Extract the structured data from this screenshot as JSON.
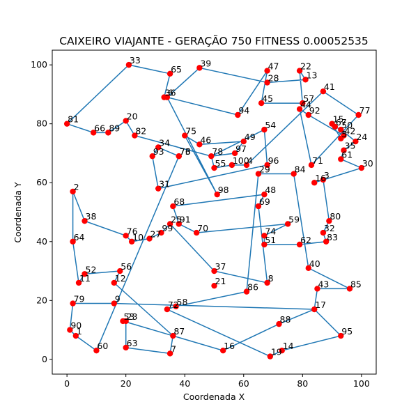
{
  "chart_data": {
    "type": "line",
    "title": "CAIXEIRO VIAJANTE - GERAÇÃO 750 FITNESS 0.00052535",
    "xlabel": "Coordenada X",
    "ylabel": "Coordenada Y",
    "xlim": [
      -5,
      105
    ],
    "ylim": [
      -5,
      105
    ],
    "xticks": [
      0,
      20,
      40,
      60,
      80,
      100
    ],
    "yticks": [
      0,
      20,
      40,
      60,
      80,
      100
    ],
    "grid": false,
    "colors": {
      "route": "#1f77b4",
      "city": "#ff0000"
    },
    "cities": [
      {
        "id": "81",
        "x": 0,
        "y": 80
      },
      {
        "id": "66",
        "x": 9,
        "y": 77
      },
      {
        "id": "89",
        "x": 14,
        "y": 77
      },
      {
        "id": "20",
        "x": 20,
        "y": 81
      },
      {
        "id": "82",
        "x": 23,
        "y": 76
      },
      {
        "id": "34",
        "x": 31,
        "y": 72
      },
      {
        "id": "93",
        "x": 29,
        "y": 69
      },
      {
        "id": "76",
        "x": 38,
        "y": 69
      },
      {
        "id": "73",
        "x": 38,
        "y": 69
      },
      {
        "id": "75",
        "x": 40,
        "y": 76
      },
      {
        "id": "46",
        "x": 45,
        "y": 73
      },
      {
        "id": "49",
        "x": 60,
        "y": 74
      },
      {
        "id": "97",
        "x": 57,
        "y": 70
      },
      {
        "id": "78",
        "x": 49,
        "y": 69
      },
      {
        "id": "55",
        "x": 50,
        "y": 65
      },
      {
        "id": "100",
        "x": 56,
        "y": 66
      },
      {
        "id": "4",
        "x": 61,
        "y": 66
      },
      {
        "id": "96",
        "x": 68,
        "y": 66
      },
      {
        "id": "29",
        "x": 65,
        "y": 63
      },
      {
        "id": "84",
        "x": 77,
        "y": 63
      },
      {
        "id": "71",
        "x": 83,
        "y": 66
      },
      {
        "id": "16",
        "x": 84,
        "y": 60
      },
      {
        "id": "3",
        "x": 87,
        "y": 61
      },
      {
        "id": "80",
        "x": 89,
        "y": 47
      },
      {
        "id": "32",
        "x": 87,
        "y": 43
      },
      {
        "id": "83",
        "x": 88,
        "y": 40
      },
      {
        "id": "62",
        "x": 79,
        "y": 39
      },
      {
        "id": "40",
        "x": 82,
        "y": 31
      },
      {
        "id": "43",
        "x": 85,
        "y": 24
      },
      {
        "id": "85",
        "x": 96,
        "y": 24
      },
      {
        "id": "17",
        "x": 84,
        "y": 17
      },
      {
        "id": "95",
        "x": 93,
        "y": 8
      },
      {
        "id": "14",
        "x": 73,
        "y": 3
      },
      {
        "id": "19",
        "x": 69,
        "y": 1
      },
      {
        "id": "16b",
        "x": 53,
        "y": 3
      },
      {
        "id": "7",
        "x": 35,
        "y": 2
      },
      {
        "id": "87",
        "x": 36,
        "y": 8
      },
      {
        "id": "72",
        "x": 34,
        "y": 17
      },
      {
        "id": "58",
        "x": 37,
        "y": 18
      },
      {
        "id": "86",
        "x": 61,
        "y": 23
      },
      {
        "id": "8",
        "x": 68,
        "y": 26
      },
      {
        "id": "88",
        "x": 72,
        "y": 12
      },
      {
        "id": "74",
        "x": 67,
        "y": 42
      },
      {
        "id": "51",
        "x": 67,
        "y": 39
      },
      {
        "id": "59",
        "x": 75,
        "y": 46
      },
      {
        "id": "69",
        "x": 65,
        "y": 52
      },
      {
        "id": "48",
        "x": 67,
        "y": 56
      },
      {
        "id": "98",
        "x": 51,
        "y": 56
      },
      {
        "id": "31",
        "x": 31,
        "y": 58
      },
      {
        "id": "68",
        "x": 36,
        "y": 52
      },
      {
        "id": "25",
        "x": 35,
        "y": 46
      },
      {
        "id": "91",
        "x": 38,
        "y": 46
      },
      {
        "id": "99",
        "x": 32,
        "y": 43
      },
      {
        "id": "70",
        "x": 44,
        "y": 43
      },
      {
        "id": "27",
        "x": 28,
        "y": 41
      },
      {
        "id": "10",
        "x": 22,
        "y": 40
      },
      {
        "id": "76b",
        "x": 20,
        "y": 42
      },
      {
        "id": "56",
        "x": 18,
        "y": 30
      },
      {
        "id": "12",
        "x": 16,
        "y": 26
      },
      {
        "id": "52",
        "x": 6,
        "y": 29
      },
      {
        "id": "11",
        "x": 4,
        "y": 26
      },
      {
        "id": "38",
        "x": 6,
        "y": 47
      },
      {
        "id": "2",
        "x": 2,
        "y": 57
      },
      {
        "id": "64",
        "x": 2,
        "y": 40
      },
      {
        "id": "79",
        "x": 2,
        "y": 19
      },
      {
        "id": "90",
        "x": 1,
        "y": 10
      },
      {
        "id": "1",
        "x": 3,
        "y": 8
      },
      {
        "id": "60",
        "x": 10,
        "y": 3
      },
      {
        "id": "9",
        "x": 16,
        "y": 19
      },
      {
        "id": "53",
        "x": 19,
        "y": 13
      },
      {
        "id": "23",
        "x": 20,
        "y": 13
      },
      {
        "id": "63",
        "x": 20,
        "y": 4
      },
      {
        "id": "37",
        "x": 50,
        "y": 30
      },
      {
        "id": "21",
        "x": 50,
        "y": 25
      },
      {
        "id": "33",
        "x": 21,
        "y": 100
      },
      {
        "id": "65",
        "x": 35,
        "y": 97
      },
      {
        "id": "39",
        "x": 45,
        "y": 99
      },
      {
        "id": "36",
        "x": 33,
        "y": 89
      },
      {
        "id": "6",
        "x": 34,
        "y": 89
      },
      {
        "id": "94",
        "x": 58,
        "y": 83
      },
      {
        "id": "47",
        "x": 68,
        "y": 98
      },
      {
        "id": "28",
        "x": 68,
        "y": 94
      },
      {
        "id": "45",
        "x": 66,
        "y": 87
      },
      {
        "id": "54",
        "x": 67,
        "y": 78
      },
      {
        "id": "22",
        "x": 79,
        "y": 98
      },
      {
        "id": "13",
        "x": 81,
        "y": 95
      },
      {
        "id": "41",
        "x": 87,
        "y": 91
      },
      {
        "id": "57",
        "x": 80,
        "y": 87
      },
      {
        "id": "44",
        "x": 79,
        "y": 85
      },
      {
        "id": "92",
        "x": 82,
        "y": 83
      },
      {
        "id": "77",
        "x": 99,
        "y": 83
      },
      {
        "id": "15",
        "x": 90,
        "y": 80
      },
      {
        "id": "67",
        "x": 91,
        "y": 79
      },
      {
        "id": "50",
        "x": 93,
        "y": 78
      },
      {
        "id": "24",
        "x": 98,
        "y": 74
      },
      {
        "id": "42",
        "x": 94,
        "y": 76
      },
      {
        "id": "5",
        "x": 93,
        "y": 75
      },
      {
        "id": "35",
        "x": 94,
        "y": 71
      },
      {
        "id": "61",
        "x": 93,
        "y": 68
      },
      {
        "id": "30",
        "x": 100,
        "y": 65
      }
    ],
    "route": [
      [
        0,
        80
      ],
      [
        21,
        100
      ],
      [
        35,
        97
      ],
      [
        33,
        89
      ],
      [
        34,
        89
      ],
      [
        58,
        83
      ],
      [
        68,
        98
      ],
      [
        66,
        87
      ],
      [
        80,
        87
      ],
      [
        79,
        98
      ],
      [
        81,
        95
      ],
      [
        68,
        94
      ],
      [
        45,
        99
      ],
      [
        34,
        89
      ],
      [
        51,
        56
      ],
      [
        40,
        76
      ],
      [
        45,
        73
      ],
      [
        60,
        74
      ],
      [
        57,
        70
      ],
      [
        49,
        69
      ],
      [
        50,
        65
      ],
      [
        56,
        66
      ],
      [
        61,
        66
      ],
      [
        87,
        91
      ],
      [
        99,
        83
      ],
      [
        83,
        66
      ],
      [
        79,
        85
      ],
      [
        82,
        83
      ],
      [
        94,
        76
      ],
      [
        93,
        75
      ],
      [
        90,
        80
      ],
      [
        91,
        79
      ],
      [
        93,
        78
      ],
      [
        98,
        74
      ],
      [
        94,
        71
      ],
      [
        93,
        68
      ],
      [
        100,
        65
      ],
      [
        84,
        60
      ],
      [
        87,
        61
      ],
      [
        89,
        47
      ],
      [
        87,
        43
      ],
      [
        88,
        40
      ],
      [
        79,
        39
      ],
      [
        67,
        39
      ],
      [
        67,
        42
      ],
      [
        75,
        46
      ],
      [
        44,
        43
      ],
      [
        38,
        46
      ],
      [
        36,
        52
      ],
      [
        67,
        56
      ],
      [
        65,
        52
      ],
      [
        68,
        26
      ],
      [
        50,
        30
      ],
      [
        35,
        46
      ],
      [
        32,
        43
      ],
      [
        28,
        41
      ],
      [
        22,
        40
      ],
      [
        20,
        42
      ],
      [
        6,
        47
      ],
      [
        2,
        57
      ],
      [
        2,
        40
      ],
      [
        4,
        26
      ],
      [
        6,
        29
      ],
      [
        18,
        30
      ],
      [
        16,
        26
      ],
      [
        36,
        8
      ],
      [
        35,
        2
      ],
      [
        20,
        4
      ],
      [
        20,
        13
      ],
      [
        19,
        13
      ],
      [
        53,
        3
      ],
      [
        72,
        12
      ],
      [
        84,
        17
      ],
      [
        85,
        24
      ],
      [
        96,
        24
      ],
      [
        82,
        31
      ],
      [
        77,
        63
      ],
      [
        65,
        63
      ],
      [
        61,
        23
      ],
      [
        37,
        18
      ],
      [
        34,
        17
      ],
      [
        69,
        1
      ],
      [
        73,
        3
      ],
      [
        93,
        8
      ],
      [
        84,
        17
      ],
      [
        16,
        19
      ],
      [
        2,
        19
      ],
      [
        1,
        10
      ],
      [
        3,
        8
      ],
      [
        10,
        3
      ],
      [
        38,
        69
      ],
      [
        31,
        72
      ],
      [
        29,
        69
      ],
      [
        31,
        58
      ],
      [
        68,
        66
      ],
      [
        67,
        78
      ],
      [
        49,
        69
      ],
      [
        23,
        76
      ],
      [
        20,
        81
      ],
      [
        14,
        77
      ],
      [
        9,
        77
      ],
      [
        0,
        80
      ]
    ]
  }
}
